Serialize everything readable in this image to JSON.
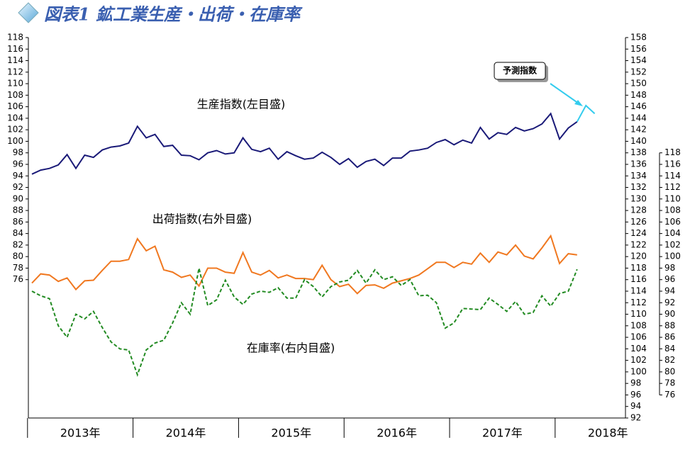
{
  "chart_data": {
    "type": "line",
    "title": "図表1 鉱工業生産・出荷・在庫率",
    "year_labels": [
      "2013年",
      "2014年",
      "2015年",
      "2016年",
      "2017年",
      "2018年"
    ],
    "ylim": [
      52,
      118
    ],
    "yticks": [
      76,
      78,
      80,
      82,
      84,
      86,
      88,
      90,
      92,
      94,
      96,
      98,
      100,
      102,
      104,
      106,
      108,
      110,
      112,
      114,
      116,
      118
    ],
    "y2lim": [
      92,
      158
    ],
    "y2ticks": [
      92,
      94,
      96,
      98,
      100,
      102,
      104,
      106,
      108,
      110,
      112,
      114,
      116,
      118,
      120,
      122,
      124,
      126,
      128,
      130,
      132,
      134,
      136,
      138,
      140,
      142,
      144,
      146,
      148,
      150,
      152,
      154,
      156,
      158
    ],
    "y3lim": [
      72,
      138
    ],
    "y3ticks": [
      76,
      78,
      80,
      82,
      84,
      86,
      88,
      90,
      92,
      94,
      96,
      98,
      100,
      102,
      104,
      106,
      108,
      110,
      112,
      114,
      116,
      118
    ],
    "series": [
      {
        "name": "生産指数(左目盛)",
        "color": "#1a1a78",
        "axis": "y",
        "dash": false,
        "values": [
          94.3,
          95,
          95.3,
          95.9,
          97.7,
          95.3,
          97.6,
          97.2,
          98.5,
          99,
          99.2,
          99.7,
          102.6,
          100.6,
          101.2,
          99.1,
          99.3,
          97.6,
          97.5,
          96.8,
          98,
          98.4,
          97.8,
          98,
          100.6,
          98.6,
          98.2,
          98.8,
          96.9,
          98.2,
          97.5,
          96.9,
          97.1,
          98.1,
          97.2,
          96,
          97,
          95.5,
          96.5,
          96.9,
          95.8,
          97.1,
          97.1,
          98.3,
          98.5,
          98.8,
          99.8,
          100.3,
          99.4,
          100.2,
          99.7,
          102.4,
          100.4,
          101.5,
          101.2,
          102.4,
          101.8,
          102.2,
          103,
          104.8,
          100.4,
          102.3,
          103.4,
          null,
          null
        ]
      },
      {
        "name": "予測指数",
        "color": "#33ccee",
        "axis": "y",
        "dash": false,
        "values": [
          null,
          null,
          null,
          null,
          null,
          null,
          null,
          null,
          null,
          null,
          null,
          null,
          null,
          null,
          null,
          null,
          null,
          null,
          null,
          null,
          null,
          null,
          null,
          null,
          null,
          null,
          null,
          null,
          null,
          null,
          null,
          null,
          null,
          null,
          null,
          null,
          null,
          null,
          null,
          null,
          null,
          null,
          null,
          null,
          null,
          null,
          null,
          null,
          null,
          null,
          null,
          null,
          null,
          null,
          null,
          null,
          null,
          null,
          null,
          null,
          null,
          null,
          103.4,
          106.2,
          104.8
        ]
      },
      {
        "name": "出荷指数(右外目盛)",
        "color": "#f07820",
        "axis": "y2",
        "dash": false,
        "values": [
          115.4,
          117,
          116.8,
          115.7,
          116.3,
          114.3,
          115.8,
          115.9,
          117.6,
          119.2,
          119.2,
          119.5,
          123.1,
          121,
          121.8,
          117.7,
          117.3,
          116.4,
          116.8,
          114.9,
          118,
          118,
          117.3,
          117.1,
          120.7,
          117.3,
          116.8,
          117.6,
          116.3,
          116.8,
          116.2,
          116.2,
          116,
          118.5,
          116,
          114.8,
          115.2,
          113.6,
          115,
          115.1,
          114.5,
          115.4,
          115.8,
          116.2,
          116.8,
          117.9,
          119,
          119,
          118.1,
          119,
          118.7,
          120.6,
          119,
          120.8,
          120.3,
          122,
          120.1,
          119.6,
          121.5,
          123.6,
          118.8,
          120.5,
          120.3,
          null,
          null
        ]
      },
      {
        "name": "在庫率(右内目盛)",
        "color": "#228b22",
        "axis": "y3",
        "dash": true,
        "values": [
          94,
          93.2,
          92.7,
          88,
          86,
          90,
          89.2,
          90.5,
          87.7,
          85.2,
          84,
          83.8,
          79.5,
          83.8,
          85,
          85.5,
          88.5,
          92,
          90,
          98,
          91.5,
          92.5,
          95.9,
          93,
          91.7,
          93.5,
          94,
          93.8,
          94.6,
          92.8,
          92.8,
          96,
          94.8,
          93,
          94.8,
          95.6,
          95.9,
          97.6,
          95.4,
          97.7,
          96,
          96.5,
          95,
          96,
          93.2,
          93.3,
          92,
          87.6,
          88.5,
          91,
          90.9,
          90.8,
          92.8,
          91.7,
          90.5,
          92.2,
          90,
          90.3,
          93.2,
          91.4,
          93.6,
          94,
          97.8,
          null,
          null
        ]
      }
    ]
  }
}
